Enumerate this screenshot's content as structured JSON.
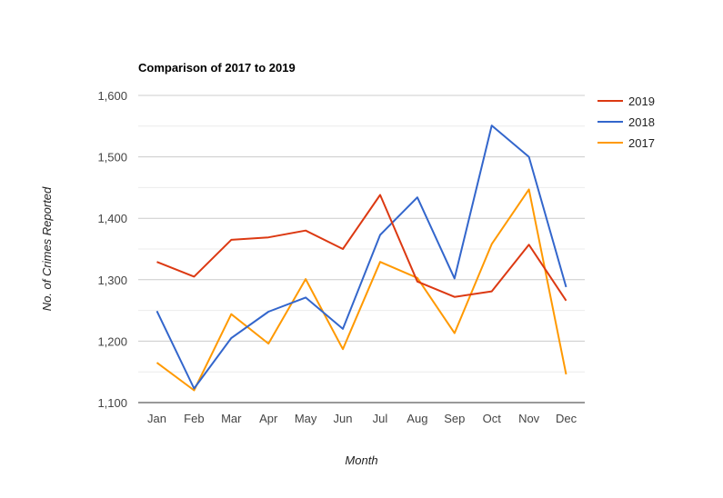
{
  "chart_data": {
    "type": "line",
    "title": "Comparison of 2017 to 2019",
    "xlabel": "Month",
    "ylabel": "No. of Crimes Reported",
    "categories": [
      "Jan",
      "Feb",
      "Mar",
      "Apr",
      "May",
      "Jun",
      "Jul",
      "Aug",
      "Sep",
      "Oct",
      "Nov",
      "Dec"
    ],
    "ylim": [
      1100,
      1600
    ],
    "yticks": [
      1100,
      1200,
      1300,
      1400,
      1500,
      1600
    ],
    "ytick_labels": [
      "1,100",
      "1,200",
      "1,300",
      "1,400",
      "1,500",
      "1,600"
    ],
    "grid": true,
    "legend_position": "right",
    "series": [
      {
        "name": "2019",
        "color": "#dc3912",
        "values": [
          1329,
          1305,
          1365,
          1369,
          1380,
          1350,
          1438,
          1297,
          1272,
          1281,
          1357,
          1266
        ]
      },
      {
        "name": "2018",
        "color": "#3366cc",
        "values": [
          1249,
          1123,
          1205,
          1248,
          1271,
          1220,
          1373,
          1434,
          1302,
          1551,
          1500,
          1288
        ]
      },
      {
        "name": "2017",
        "color": "#ff9900",
        "values": [
          1165,
          1120,
          1244,
          1196,
          1301,
          1187,
          1329,
          1303,
          1213,
          1358,
          1447,
          1146
        ]
      }
    ]
  }
}
